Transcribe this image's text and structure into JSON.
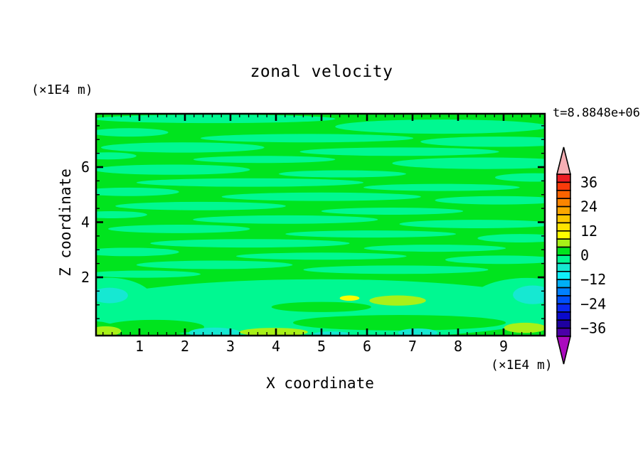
{
  "chart_data": {
    "type": "filled-contour",
    "title": "zonal velocity",
    "time_annotation": "t=8.8848e+06",
    "x_axis": {
      "title": "X coordinate",
      "units": "(×1E4 m)",
      "range": [
        0,
        9.9
      ],
      "ticks": [
        1,
        2,
        3,
        4,
        5,
        6,
        7,
        8,
        9
      ],
      "minor_step": 0.2
    },
    "y_axis": {
      "title": "Z coordinate",
      "units": "(×1E4 m)",
      "range": [
        0,
        7.95
      ],
      "ticks": [
        2,
        4,
        6
      ],
      "minor_step": 0.5
    },
    "levels": {
      "min": -40,
      "max": 40,
      "step": 4
    },
    "colorbar": {
      "tick_values": [
        36,
        24,
        12,
        0,
        -12,
        -24,
        -36
      ],
      "tick_labels": [
        "36",
        "24",
        "12",
        "0",
        "−12",
        "−24",
        "−36"
      ],
      "colors_top_to_bottom": [
        "#EC1C24",
        "#F93B0B",
        "#FA6400",
        "#FB8500",
        "#FCA700",
        "#FDC800",
        "#FEE400",
        "#FDFD00",
        "#A8F118",
        "#00E41E",
        "#00F891",
        "#16E8D2",
        "#0FF0FA",
        "#00AEF5",
        "#0080FF",
        "#0050FA",
        "#0A28F0",
        "#0A0ACD",
        "#1E00A0",
        "#4B00A8"
      ],
      "over_arrow_color": "#F6AEB4",
      "under_arrow_color": "#AA0ABE"
    },
    "field": {
      "background_band": "0..4",
      "background_fill": "#00E41E",
      "regions": [
        {
          "value_band": "-4..0",
          "fill": "#00F891",
          "ellipses": [
            [
              0.264,
              0.023,
              0.269,
              0.019
            ],
            [
              0.77,
              0.058,
              0.237,
              0.032
            ],
            [
              0.074,
              0.084,
              0.087,
              0.019
            ],
            [
              0.47,
              0.11,
              0.237,
              0.019
            ],
            [
              0.897,
              0.126,
              0.174,
              0.023
            ],
            [
              0.193,
              0.152,
              0.182,
              0.023
            ],
            [
              0.676,
              0.171,
              0.222,
              0.019
            ],
            [
              0.027,
              0.19,
              0.063,
              0.016
            ],
            [
              0.375,
              0.206,
              0.158,
              0.016
            ],
            [
              0.866,
              0.223,
              0.206,
              0.026
            ],
            [
              0.169,
              0.252,
              0.174,
              0.023
            ],
            [
              0.549,
              0.271,
              0.142,
              0.016
            ],
            [
              0.976,
              0.287,
              0.087,
              0.019
            ],
            [
              0.343,
              0.31,
              0.253,
              0.019
            ],
            [
              0.77,
              0.332,
              0.174,
              0.016
            ],
            [
              0.074,
              0.352,
              0.111,
              0.019
            ],
            [
              0.502,
              0.374,
              0.222,
              0.019
            ],
            [
              0.897,
              0.39,
              0.142,
              0.019
            ],
            [
              0.233,
              0.416,
              0.19,
              0.019
            ],
            [
              0.66,
              0.439,
              0.158,
              0.016
            ],
            [
              0.035,
              0.455,
              0.079,
              0.016
            ],
            [
              0.422,
              0.477,
              0.206,
              0.019
            ],
            [
              0.85,
              0.497,
              0.174,
              0.019
            ],
            [
              0.185,
              0.519,
              0.158,
              0.019
            ],
            [
              0.612,
              0.542,
              0.19,
              0.016
            ],
            [
              0.945,
              0.561,
              0.095,
              0.019
            ],
            [
              0.343,
              0.584,
              0.222,
              0.019
            ],
            [
              0.755,
              0.606,
              0.158,
              0.016
            ],
            [
              0.074,
              0.623,
              0.111,
              0.019
            ],
            [
              0.502,
              0.642,
              0.19,
              0.016
            ],
            [
              0.905,
              0.658,
              0.127,
              0.019
            ],
            [
              0.264,
              0.681,
              0.174,
              0.019
            ],
            [
              0.668,
              0.703,
              0.206,
              0.019
            ],
            [
              0.106,
              0.723,
              0.127,
              0.016
            ],
            [
              0.502,
              0.881,
              0.538,
              0.135
            ],
            [
              0.027,
              0.839,
              0.1,
              0.1
            ],
            [
              0.96,
              0.855,
              0.13,
              0.115
            ]
          ]
        },
        {
          "value_band": "0..4",
          "fill": "#00E41E",
          "ellipses": [
            [
              0.13,
              0.961,
              0.111,
              0.032
            ],
            [
              0.676,
              0.942,
              0.237,
              0.035
            ],
            [
              0.502,
              0.871,
              0.111,
              0.023
            ]
          ]
        },
        {
          "value_band": "-8..-4",
          "fill": "#16E8D2",
          "ellipses": [
            [
              0.03,
              0.819,
              0.041,
              0.035
            ],
            [
              0.973,
              0.816,
              0.044,
              0.042
            ],
            [
              0.264,
              0.987,
              0.057,
              0.023
            ],
            [
              0.717,
              0.987,
              0.044,
              0.019
            ],
            [
              0.525,
              0.994,
              0.041,
              0.013
            ]
          ]
        },
        {
          "value_band": "4..8",
          "fill": "#A8F118",
          "ellipses": [
            [
              0.021,
              0.98,
              0.035,
              0.022
            ],
            [
              0.396,
              0.984,
              0.076,
              0.019
            ],
            [
              0.956,
              0.965,
              0.047,
              0.023
            ],
            [
              0.672,
              0.842,
              0.063,
              0.023
            ]
          ]
        },
        {
          "value_band": "8..12",
          "fill": "#FDFD00",
          "ellipses": [
            [
              0.565,
              0.831,
              0.022,
              0.012
            ]
          ]
        }
      ]
    }
  }
}
